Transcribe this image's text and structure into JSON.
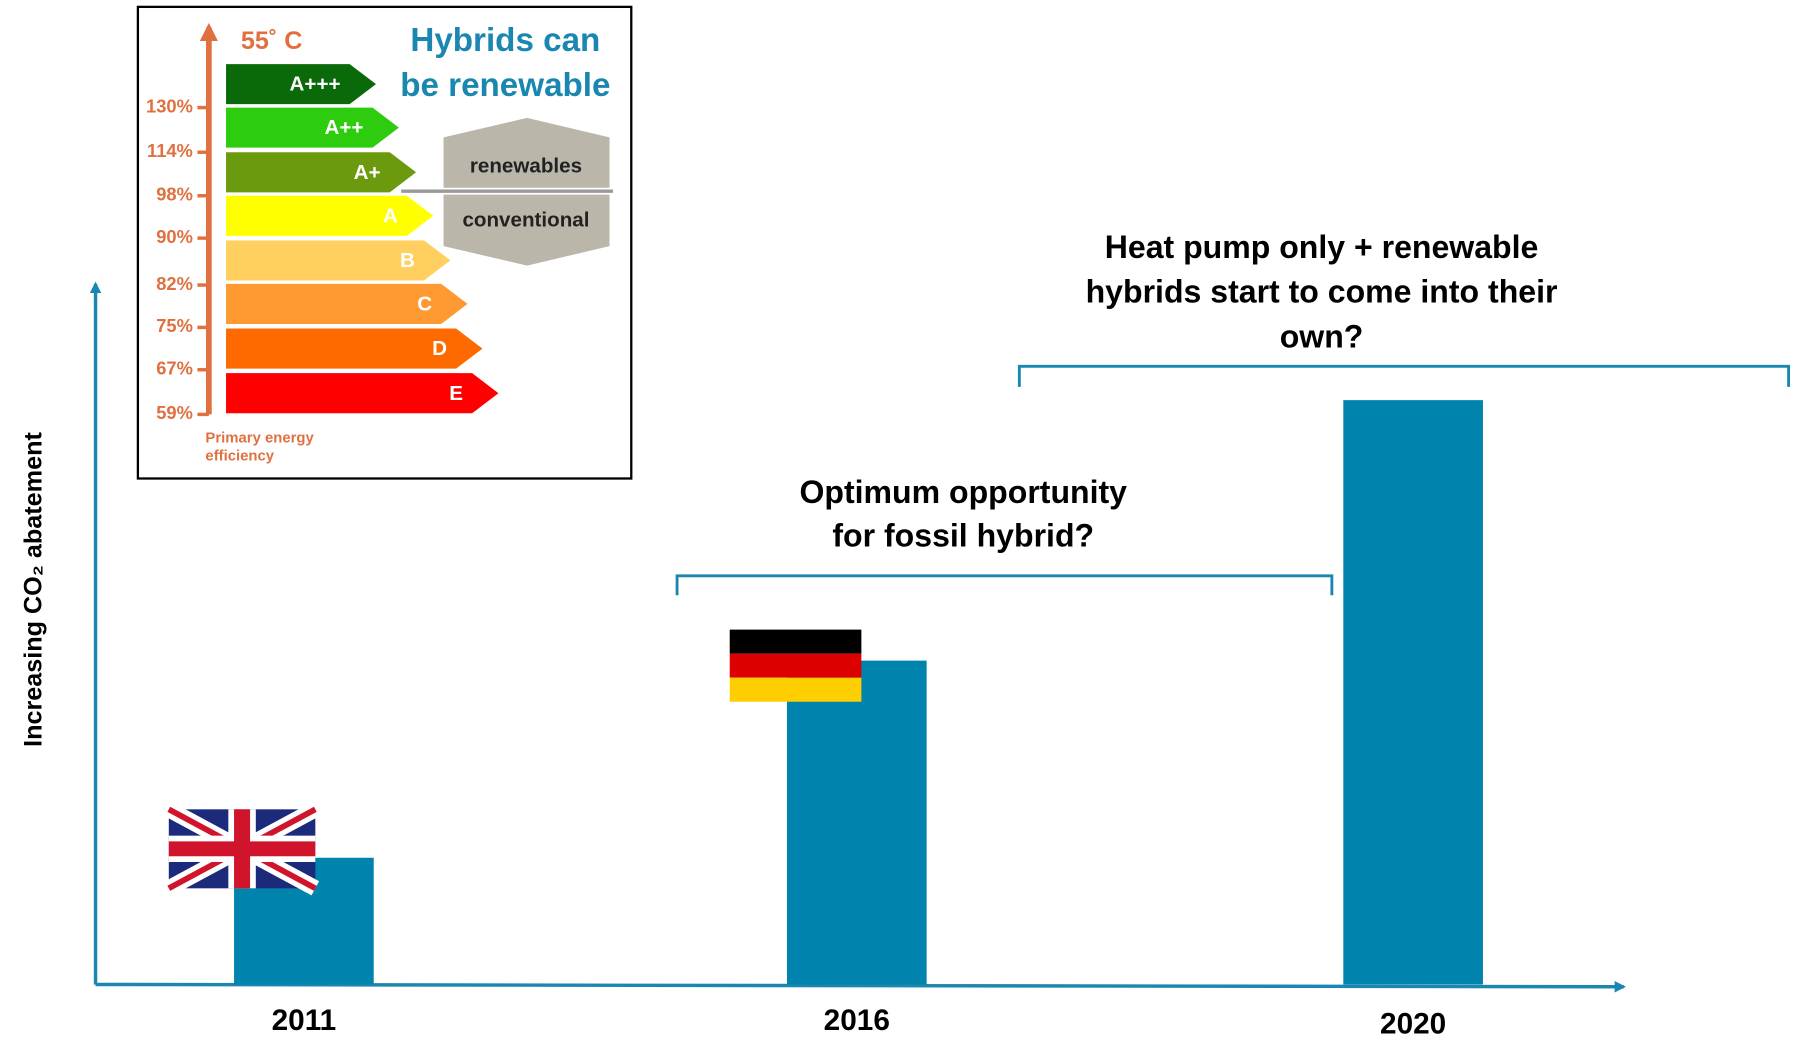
{
  "chart_data": {
    "type": "bar",
    "y_label": "Increasing CO₂ abatement",
    "categories": [
      "2011",
      "2016",
      "2020"
    ],
    "values": [
      18,
      46,
      83
    ],
    "color": "#0083ad",
    "ylim": [
      0,
      100
    ],
    "annotations": [
      {
        "lines": [
          "Optimum opportunity",
          "for fossil hybrid?"
        ]
      },
      {
        "lines": [
          "Heat pump only + renewable",
          "hybrids start to come into their",
          "own?"
        ]
      }
    ],
    "inset": {
      "temperature": "55˚  C",
      "title": [
        "Hybrids can",
        "be renewable"
      ],
      "classes": [
        "A+++",
        "A++",
        "A+",
        "A",
        "B",
        "C",
        "D",
        "E"
      ],
      "class_colors": [
        "#0a6a0a",
        "#2ecc0e",
        "#6b9a0e",
        "#ffff00",
        "#ffd060",
        "#ff9a33",
        "#ff6a00",
        "#ff0000"
      ],
      "efficiency_labels": [
        "130%",
        "114%",
        "98%",
        "90%",
        "82%",
        "75%",
        "67%",
        "59%"
      ],
      "axis_label": [
        "Primary energy",
        "efficiency"
      ],
      "zones": [
        "renewables",
        "conventional"
      ]
    }
  }
}
